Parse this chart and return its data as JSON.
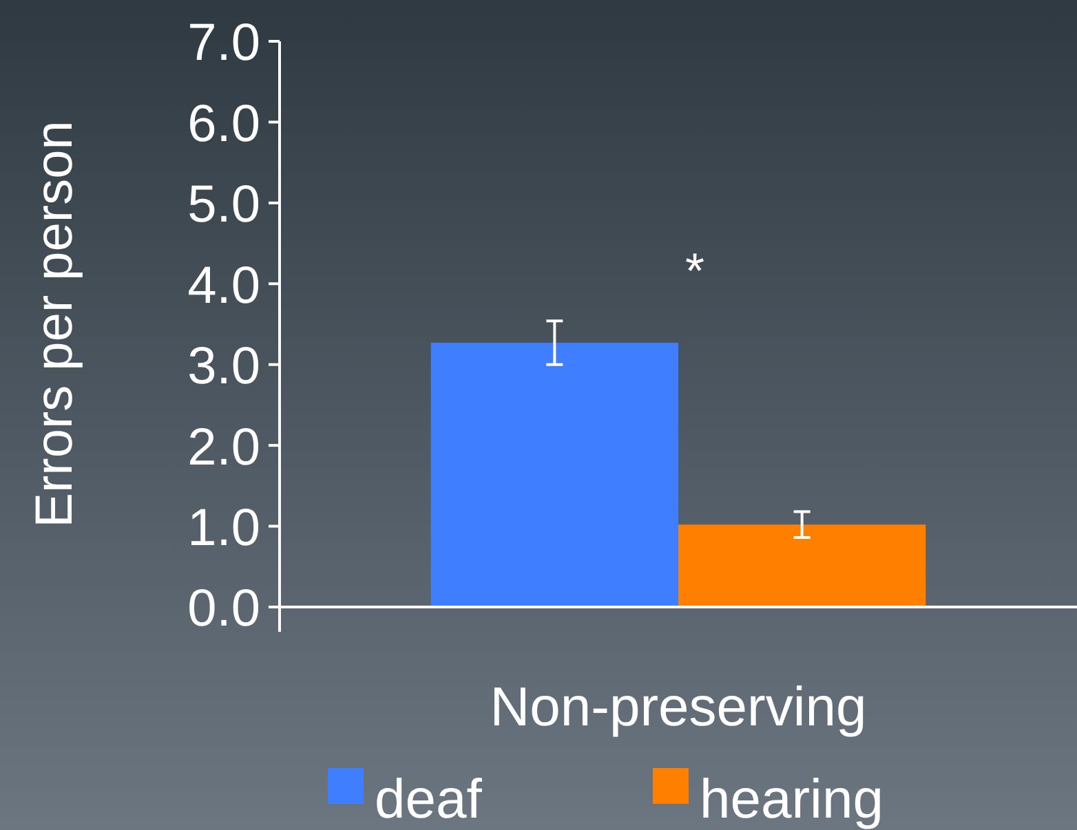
{
  "chart_data": {
    "type": "bar",
    "ylabel": "Errors per person",
    "categories": [
      "Non-preserving"
    ],
    "series": [
      {
        "name": "deaf",
        "color": "#3f7fff",
        "values": [
          3.27
        ],
        "errors": [
          0.27
        ]
      },
      {
        "name": "hearing",
        "color": "#ff8000",
        "values": [
          1.02
        ],
        "errors": [
          0.16
        ]
      }
    ],
    "ylim": [
      0,
      7
    ],
    "yticks": [
      {
        "value": 0,
        "label": "0.0"
      },
      {
        "value": 1,
        "label": "1.0"
      },
      {
        "value": 2,
        "label": "2.0"
      },
      {
        "value": 3,
        "label": "3.0"
      },
      {
        "value": 4,
        "label": "4.0"
      },
      {
        "value": 5,
        "label": "5.0"
      },
      {
        "value": 6,
        "label": "6.0"
      },
      {
        "value": 7,
        "label": "7.0"
      }
    ],
    "annotations": [
      "*"
    ],
    "legend": "bottom",
    "grid": false
  }
}
